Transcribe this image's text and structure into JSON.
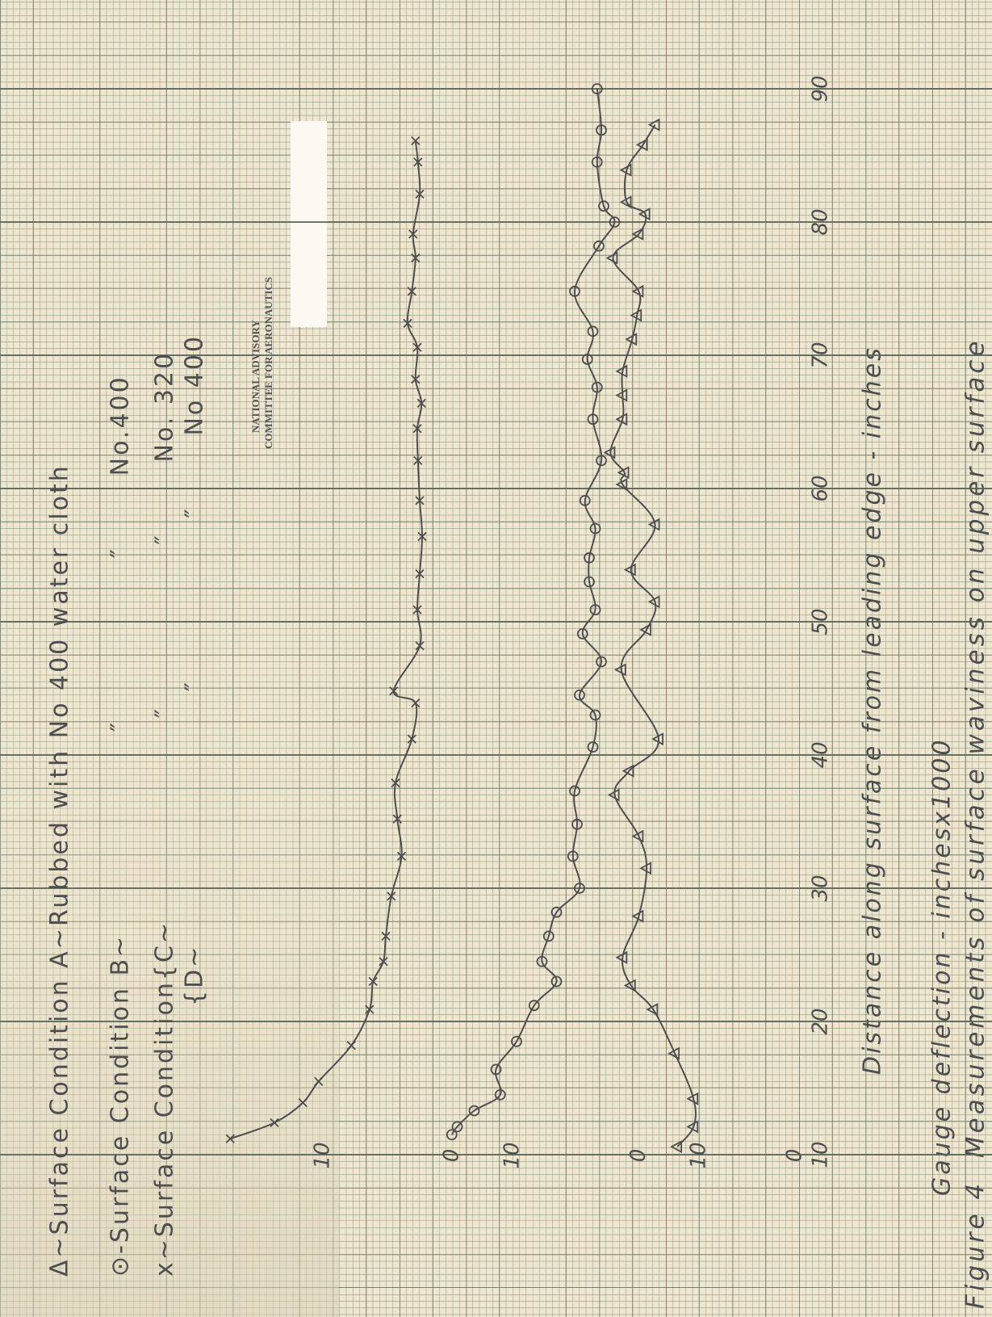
{
  "chart_data": [
    {
      "type": "line",
      "title": "Figure 4  Measurements of surface waviness on upper surface",
      "xlabel": "Distance along surface from leading edge - inches",
      "ylabel": "Gauge deflection - inchesx1000",
      "stamp": [
        "NATIONAL ADVISORY",
        "COMMITTEE FOR AERONAUTICS"
      ],
      "xlim": [
        0,
        95
      ],
      "xticks": [
        10,
        20,
        30,
        40,
        50,
        60,
        70,
        80,
        90
      ],
      "grid": true,
      "ylim": [
        -74.7,
        28
      ],
      "yticks": [
        0,
        10
      ],
      "series": [
        {
          "name": "Δ~Surface Condition A~Rubbed with No 400 water cloth",
          "color": "#4e4e4e",
          "marker": "triangle",
          "x": [
            10.6,
            12.1,
            14.2,
            17.6,
            20.9,
            22.7,
            24.8,
            27.9,
            31.5,
            33.9,
            37,
            38.8,
            41.2,
            46.4,
            49.4,
            51.5,
            53.9,
            57.3,
            60.3,
            61.2,
            62.7,
            65.2,
            67,
            68.8,
            71.2,
            73,
            74.8,
            77.3,
            79.1,
            80.6,
            81.5,
            83.9,
            85.8,
            87.3
          ],
          "values": [
            6.4,
            9.1,
            9.1,
            6,
            2.4,
            -1.3,
            -2.7,
            0,
            1.3,
            0,
            -4,
            -1.6,
            3.3,
            -2.9,
            1.3,
            2.7,
            -1.3,
            2.7,
            -2.7,
            -2.4,
            -4.7,
            -2.7,
            -2.7,
            -2.7,
            -1.1,
            -0.3,
            0,
            -4.3,
            0,
            1.1,
            -2,
            -2,
            0.7,
            2.7
          ]
        }
      ]
    },
    {
      "type": "line",
      "ylim": [
        -43.3,
        58.7
      ],
      "yticks": [
        0,
        10
      ],
      "series": [
        {
          "name": "⊙-Surface Condition B~                    ″                ″       No.400",
          "color": "#4e4e4e",
          "marker": "circle",
          "x": [
            11.5,
            12.1,
            13.3,
            14.5,
            16.4,
            18.5,
            21.2,
            23,
            24.5,
            26.4,
            28.2,
            30,
            32.4,
            34.8,
            37.3,
            40.6,
            43,
            44.5,
            47,
            49.1,
            50.9,
            53,
            54.8,
            57,
            59.1,
            62.1,
            65.2,
            67.6,
            69.7,
            71.8,
            74.8,
            78.2,
            80,
            81.2,
            84.5,
            86.9,
            90
          ],
          "values": [
            0,
            0.9,
            3.7,
            8,
            7.3,
            10.7,
            13.6,
            17.3,
            14.9,
            16,
            17.3,
            21.1,
            20,
            20.7,
            20.3,
            23.3,
            23.7,
            21.1,
            24.7,
            21.6,
            23.7,
            22.7,
            22.7,
            23.7,
            22,
            24.7,
            23.3,
            24,
            22.4,
            23.3,
            20.3,
            24.3,
            26.9,
            25.1,
            24,
            24.7,
            24
          ]
        }
      ]
    },
    {
      "type": "line",
      "ylim": [
        -12,
        90
      ],
      "yticks": [
        10
      ],
      "series": [
        {
          "name": "x~Surface Condition{C~                    ″                ″       No. 320",
          "color": "#4e4e4e",
          "marker": "x",
          "x": [
            11.2,
            12.4,
            13.9,
            15.5,
            18.2,
            20.9,
            23,
            24.5,
            26.4,
            29.4,
            32.4,
            35.2,
            37.9,
            41.2,
            43.9,
            44.8,
            48.2,
            50.9,
            53.6,
            56.4,
            59.1,
            62.1,
            64.5,
            66.4,
            68.2,
            70.6,
            72.4,
            74.8,
            77.3,
            79.1,
            82.1,
            84.5,
            86.1
          ],
          "values": [
            -5.3,
            2,
            6.7,
            9.3,
            14.7,
            17.7,
            18.3,
            20,
            20.4,
            21.3,
            23,
            22.3,
            22,
            24.7,
            25.3,
            21.7,
            26,
            25.6,
            26,
            26.4,
            26,
            25.7,
            25.6,
            26.3,
            25.3,
            25.6,
            24,
            24.7,
            25.3,
            24.9,
            26,
            25.7,
            25.3
          ]
        }
      ]
    },
    {
      "type": "line",
      "ylim": [
        -100,
        2
      ],
      "yticks": [
        0
      ],
      "series": [
        {
          "name": "{D~                         ″                ″       No 400",
          "color": "#4e4e4e",
          "marker": "none",
          "x": [],
          "values": []
        }
      ]
    }
  ]
}
